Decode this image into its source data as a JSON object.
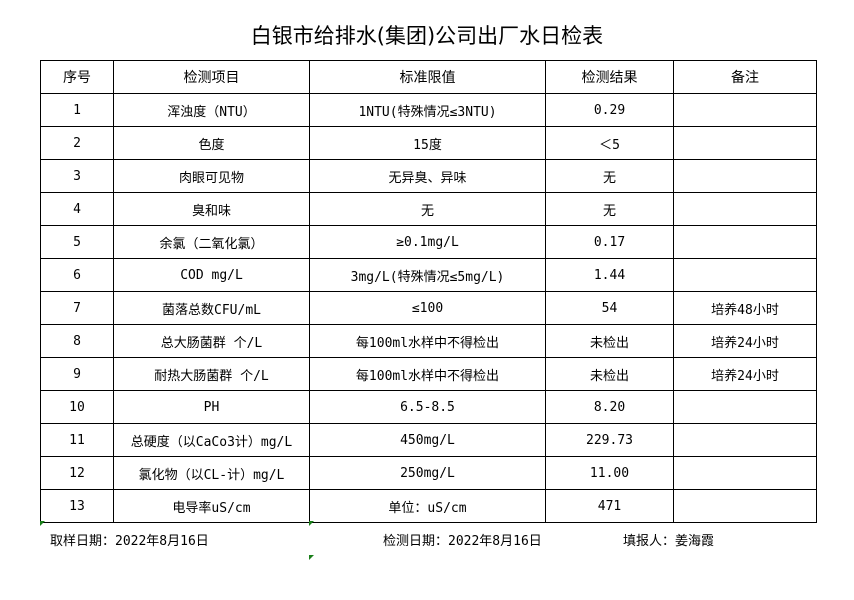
{
  "title": "白银市给排水(集团)公司出厂水日检表",
  "columns": [
    "序号",
    "检测项目",
    "标准限值",
    "检测结果",
    "备注"
  ],
  "rows": [
    [
      "1",
      "浑浊度（NTU）",
      "1NTU(特殊情况≤3NTU)",
      "0.29",
      ""
    ],
    [
      "2",
      "色度",
      "15度",
      "＜5",
      ""
    ],
    [
      "3",
      "肉眼可见物",
      "无异臭、异味",
      "无",
      ""
    ],
    [
      "4",
      "臭和味",
      "无",
      "无",
      ""
    ],
    [
      "5",
      "余氯（二氧化氯）",
      "≥0.1mg/L",
      "0.17",
      ""
    ],
    [
      "6",
      "COD        mg/L",
      "3mg/L(特殊情况≤5mg/L)",
      "1.44",
      ""
    ],
    [
      "7",
      "菌落总数CFU/mL",
      "≤100",
      "54",
      "培养48小时"
    ],
    [
      "8",
      "总大肠菌群 个/L",
      "每100ml水样中不得检出",
      "未检出",
      "培养24小时"
    ],
    [
      "9",
      "耐热大肠菌群 个/L",
      "每100ml水样中不得检出",
      "未检出",
      "培养24小时"
    ],
    [
      "10",
      "PH",
      "6.5-8.5",
      "8.20",
      ""
    ],
    [
      "11",
      "总硬度（以CaCo3计）mg/L",
      "450mg/L",
      "229.73",
      ""
    ],
    [
      "12",
      "氯化物（以CL-计）mg/L",
      "250mg/L",
      "11.00",
      ""
    ],
    [
      "13",
      "电导率uS/cm",
      "单位：uS/cm",
      "471",
      ""
    ]
  ],
  "footer": {
    "sampling_date": "取样日期：2022年8月16日",
    "test_date": "检测日期：2022年8月16日",
    "reporter": "填报人：姜海霞"
  }
}
